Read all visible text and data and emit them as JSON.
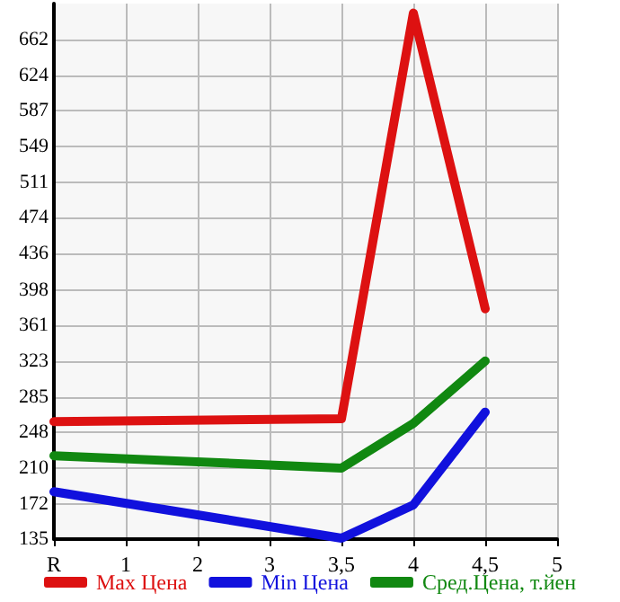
{
  "chart_data": {
    "type": "line",
    "categories": [
      "R",
      "1",
      "2",
      "3",
      "3,5",
      "4",
      "4,5",
      "5"
    ],
    "series": [
      {
        "name": "Max Цена",
        "color": "#dd1111",
        "values": [
          259,
          null,
          null,
          null,
          262,
          690,
          378,
          null
        ]
      },
      {
        "name": "Min Цена",
        "color": "#1111dd",
        "values": [
          185,
          null,
          null,
          null,
          136,
          171,
          269,
          null
        ]
      },
      {
        "name": "Сред.Цена, т.йен",
        "color": "#118811",
        "values": [
          223,
          null,
          null,
          null,
          210,
          257,
          323,
          null
        ]
      }
    ],
    "ylim": [
      135,
      700
    ],
    "yticks": [
      135,
      172,
      210,
      248,
      285,
      323,
      361,
      398,
      436,
      474,
      511,
      549,
      587,
      624,
      662
    ],
    "grid": true,
    "legend": "bottom",
    "marker": "none",
    "line_style": "solid"
  }
}
